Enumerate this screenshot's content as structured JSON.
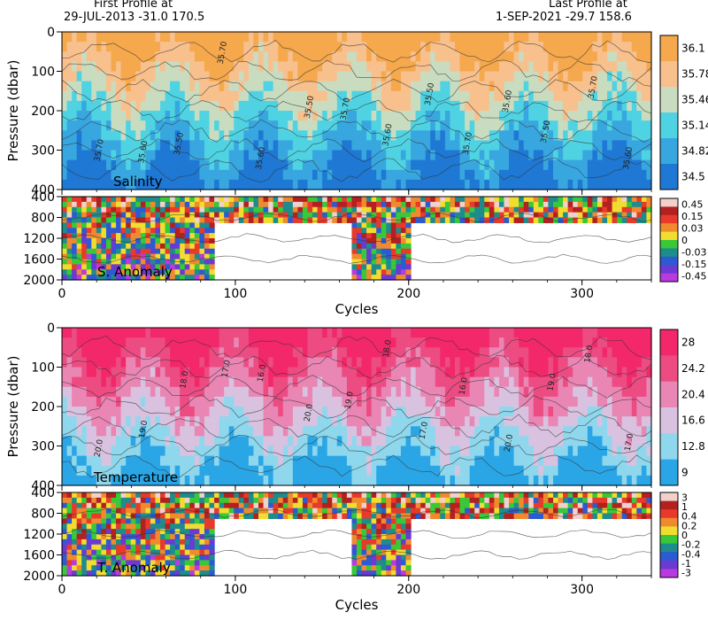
{
  "header": {
    "first_label": "First Profile at",
    "first_value": "29-JUL-2013    -31.0  170.5",
    "last_label": "Last Profile at",
    "last_value": "1-SEP-2021    -29.7  158.6"
  },
  "chart_data": [
    {
      "type": "heatmap",
      "panel": "salinity",
      "label": "Salinity",
      "ylabel": "Pressure (dbar)",
      "xlabel": "",
      "xlim": [
        0,
        340
      ],
      "ylim": [
        400,
        0
      ],
      "xticks": [
        0,
        100,
        200,
        300
      ],
      "yticks": [
        0,
        100,
        200,
        300,
        400
      ],
      "colorbar": {
        "labels": [
          "36.1",
          "35.78",
          "35.46",
          "35.14",
          "34.82",
          "34.5"
        ],
        "colors": [
          "#f5a84c",
          "#f7c08d",
          "#c9dcc0",
          "#4fd3e3",
          "#38a7e0",
          "#1e78d4"
        ]
      },
      "contour_labels": [
        "35.70",
        "35.60",
        "35.50"
      ]
    },
    {
      "type": "heatmap",
      "panel": "salinity-anomaly",
      "label": "S. Anomaly",
      "ylabel": "",
      "xlabel": "Cycles",
      "xlim": [
        0,
        340
      ],
      "ylim": [
        2000,
        400
      ],
      "xticks": [
        0,
        100,
        200,
        300
      ],
      "yticks": [
        400,
        800,
        1200,
        1600,
        2000
      ],
      "colorbar": {
        "labels": [
          "0.45",
          "0.15",
          "0.03",
          "0",
          "-0.03",
          "-0.15",
          "-0.45"
        ],
        "colors": [
          "#f2d0cc",
          "#b22020",
          "#e83a2a",
          "#f08a2e",
          "#f2dc30",
          "#38c838",
          "#1e8c8c",
          "#2c5ad2",
          "#6a3ad2",
          "#b83ae0"
        ]
      }
    },
    {
      "type": "heatmap",
      "panel": "temperature",
      "label": "Temperature",
      "ylabel": "Pressure (dbar)",
      "xlabel": "",
      "xlim": [
        0,
        340
      ],
      "ylim": [
        400,
        0
      ],
      "xticks": [
        0,
        100,
        200,
        300
      ],
      "yticks": [
        0,
        100,
        200,
        300,
        400
      ],
      "colorbar": {
        "labels": [
          "28",
          "24.2",
          "20.4",
          "16.6",
          "12.8",
          "9"
        ],
        "colors": [
          "#f2286a",
          "#ec4c82",
          "#e986b4",
          "#d9c2e0",
          "#8fd7ec",
          "#2aa6e6"
        ]
      },
      "contour_labels": [
        "20.0",
        "19.0",
        "18.0",
        "17.0",
        "16.0"
      ]
    },
    {
      "type": "heatmap",
      "panel": "temperature-anomaly",
      "label": "T. Anomaly",
      "ylabel": "",
      "xlabel": "Cycles",
      "xlim": [
        0,
        340
      ],
      "ylim": [
        2000,
        400
      ],
      "xticks": [
        0,
        100,
        200,
        300
      ],
      "yticks": [
        400,
        800,
        1200,
        1600,
        2000
      ],
      "colorbar": {
        "labels": [
          "3",
          "1",
          "0.4",
          "0.2",
          "0",
          "-0.2",
          "-0.4",
          "-1",
          "-3"
        ],
        "colors": [
          "#f2d0cc",
          "#b22020",
          "#e83a2a",
          "#f08a2e",
          "#f2dc30",
          "#38c838",
          "#1e8c8c",
          "#2c5ad2",
          "#6a3ad2",
          "#b83ae0"
        ]
      }
    }
  ]
}
